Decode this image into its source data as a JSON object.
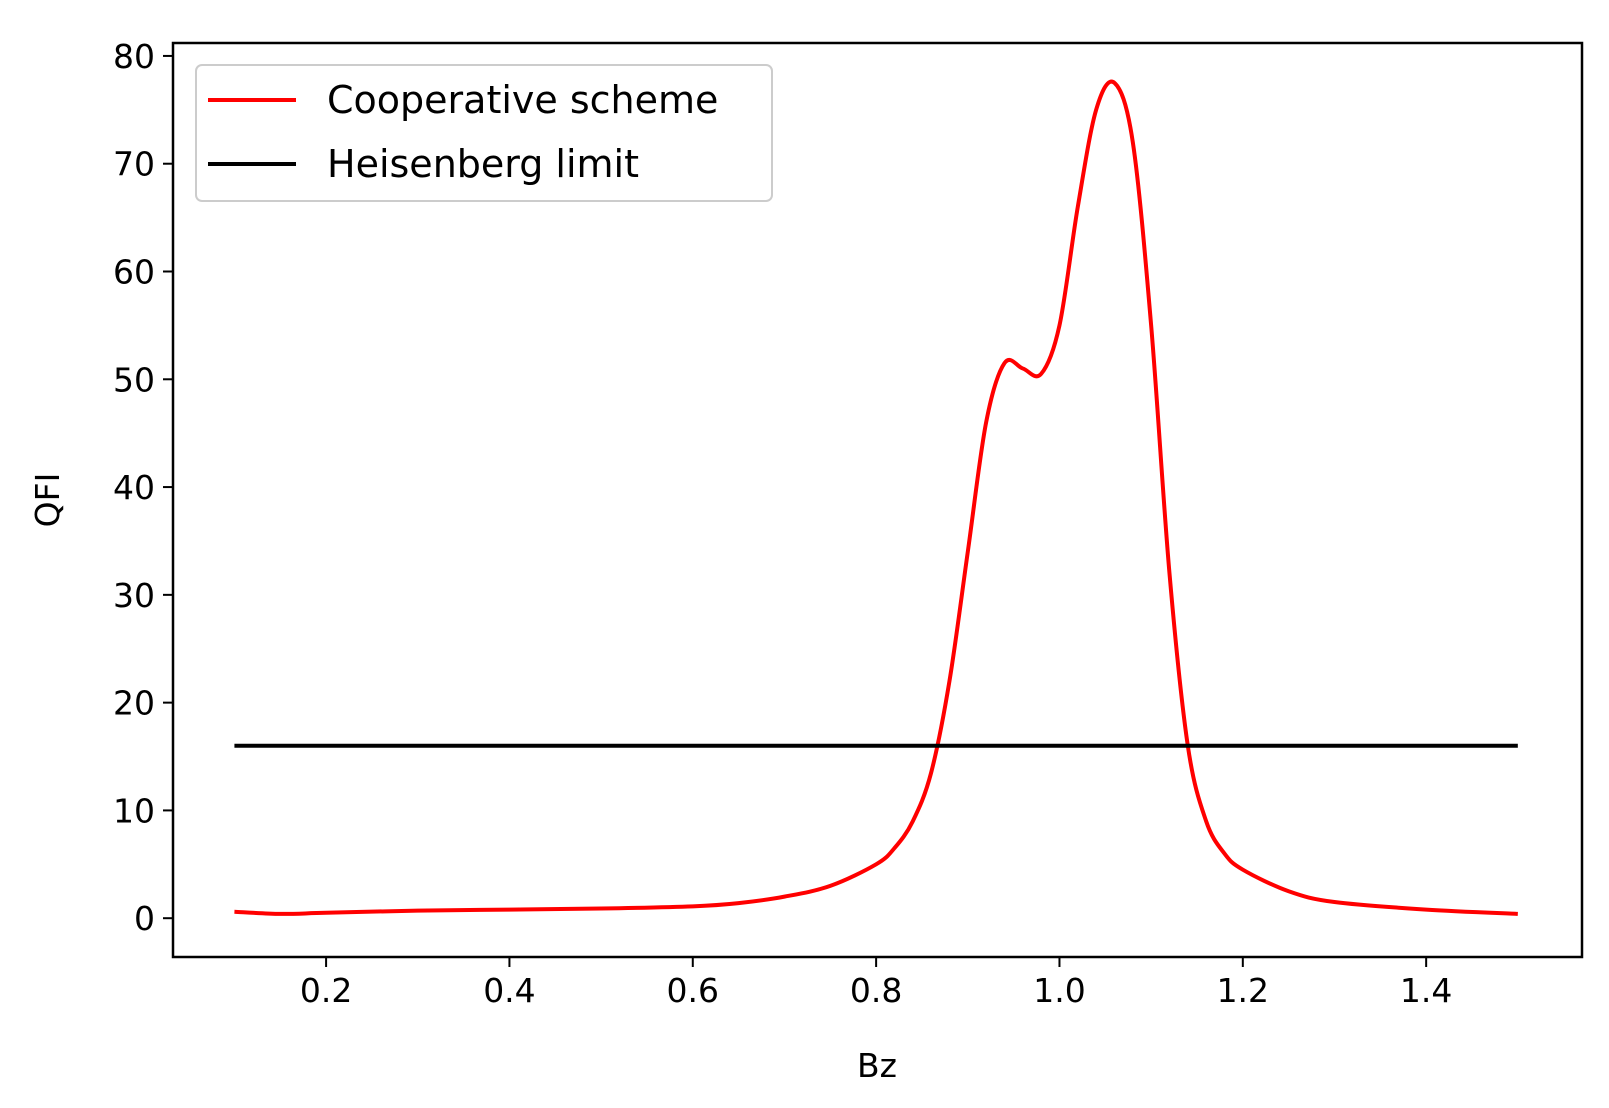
{
  "chart_data": {
    "type": "line",
    "xlabel": "Bz",
    "ylabel": "QFI",
    "xlim": [
      0.033,
      1.57
    ],
    "ylim": [
      -3.6,
      81.2
    ],
    "x_ticks": [
      0.2,
      0.4,
      0.6,
      0.8,
      1.0,
      1.2,
      1.4
    ],
    "x_tick_labels": [
      "0.2",
      "0.4",
      "0.6",
      "0.8",
      "1.0",
      "1.2",
      "1.4"
    ],
    "y_ticks": [
      0,
      10,
      20,
      30,
      40,
      50,
      60,
      70,
      80
    ],
    "y_tick_labels": [
      "0",
      "10",
      "20",
      "30",
      "40",
      "50",
      "60",
      "70",
      "80"
    ],
    "grid": false,
    "legend_position": "top-left",
    "series": [
      {
        "name": "Cooperative scheme",
        "color": "#ff0000",
        "x": [
          0.1,
          0.15,
          0.2,
          0.3,
          0.4,
          0.5,
          0.6,
          0.65,
          0.7,
          0.75,
          0.8,
          0.82,
          0.84,
          0.86,
          0.88,
          0.9,
          0.92,
          0.94,
          0.96,
          0.98,
          1.0,
          1.02,
          1.04,
          1.06,
          1.08,
          1.1,
          1.12,
          1.14,
          1.16,
          1.18,
          1.2,
          1.25,
          1.3,
          1.4,
          1.5
        ],
        "y": [
          0.6,
          0.4,
          0.5,
          0.7,
          0.8,
          0.9,
          1.1,
          1.4,
          2.0,
          3.0,
          5.0,
          6.5,
          9.0,
          13.5,
          22.0,
          34.0,
          46.0,
          51.5,
          51.0,
          50.5,
          55.0,
          66.0,
          75.0,
          77.5,
          72.0,
          55.0,
          32.0,
          16.0,
          9.0,
          6.0,
          4.5,
          2.5,
          1.5,
          0.8,
          0.4
        ]
      },
      {
        "name": "Heisenberg limit",
        "color": "#000000",
        "x": [
          0.1,
          1.5
        ],
        "y": [
          16,
          16
        ]
      }
    ]
  }
}
